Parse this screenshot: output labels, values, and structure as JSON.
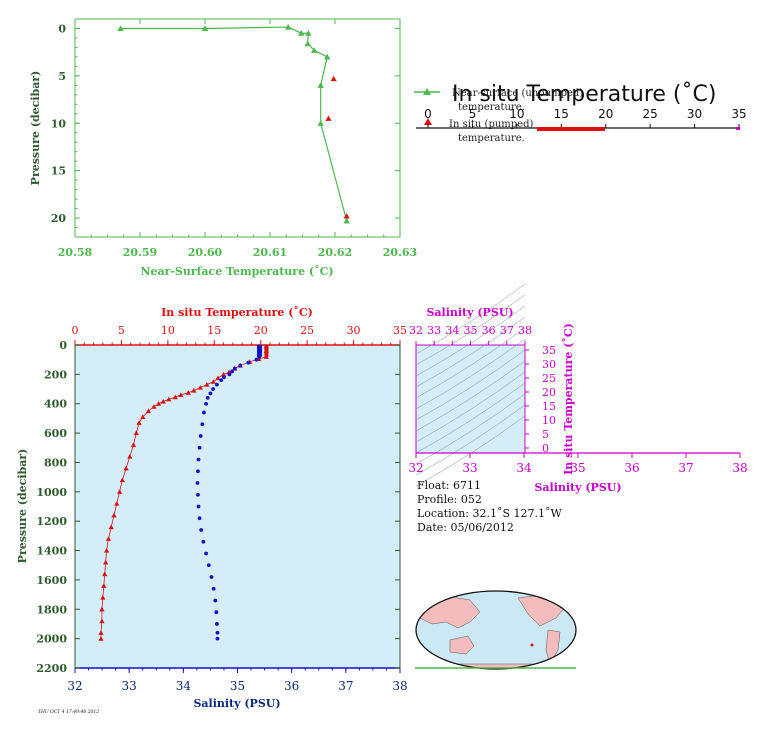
{
  "colors": {
    "green": "#4db84d",
    "red": "#dd1111",
    "blue": "#1111cc",
    "magenta": "#cc00cc",
    "navy": "#0a2a7a",
    "darkgreen": "#2e5a2e",
    "plot_bg": "#d3eef8",
    "land": "#f4bcbc",
    "ocean": "#cce8f4"
  },
  "top_chart": {
    "xlabel": "Near-Surface Temperature (˚C)",
    "ylabel": "Pressure (decibar)",
    "x_ticks": [
      "20.58",
      "20.59",
      "20.60",
      "20.61",
      "20.62",
      "20.63"
    ],
    "y_ticks": [
      "0",
      "5",
      "10",
      "15",
      "20"
    ],
    "legend": {
      "title": "In situ Temperature (˚C)",
      "item1": "Near-surface (unpumped)",
      "item1b": "temperature.",
      "item2": "In situ (pumped)",
      "item2b": "temperature.",
      "scale_ticks": [
        "0",
        "5",
        "10",
        "15",
        "20",
        "25",
        "30",
        "35"
      ]
    }
  },
  "main_chart": {
    "top_xlabel": "In situ Temperature (˚C)",
    "bottom_xlabel": "Salinity (PSU)",
    "ylabel": "Pressure (decibar)",
    "temp_ticks": [
      "0",
      "5",
      "10",
      "15",
      "20",
      "25",
      "30",
      "35"
    ],
    "sal_ticks": [
      "32",
      "33",
      "34",
      "35",
      "36",
      "37",
      "38"
    ],
    "pres_ticks": [
      "0",
      "200",
      "400",
      "600",
      "800",
      "1000",
      "1200",
      "1400",
      "1600",
      "1800",
      "2000",
      "2200"
    ]
  },
  "ts_chart": {
    "top_xlabel": "Salinity (PSU)",
    "right_ylabel": "In situ Temperature (˚C)",
    "bottom_xlabel": "Salinity (PSU)",
    "top_ticks": [
      "32",
      "33",
      "34",
      "35",
      "36",
      "37",
      "38"
    ],
    "right_ticks": [
      "0",
      "5",
      "10",
      "15",
      "20",
      "25",
      "30",
      "35"
    ],
    "bottom_ticks": [
      "32",
      "33",
      "34",
      "35",
      "36",
      "37",
      "38"
    ]
  },
  "info": {
    "float": "Float:  6711",
    "profile": "Profile:  052",
    "location": "Location:  32.1˚S  127.1˚W",
    "date": "Date:  05/06/2012"
  },
  "footer": "THU OCT 4 17:49:46 2012",
  "chart_data": [
    {
      "type": "line",
      "title": "",
      "xlabel": "Near-Surface Temperature (˚C)",
      "ylabel": "Pressure (decibar)",
      "xlim": [
        20.58,
        20.63
      ],
      "ylim": [
        22,
        -1
      ],
      "series": [
        {
          "name": "Near-surface (unpumped) temperature.",
          "points": [
            [
              20.587,
              0
            ],
            [
              20.6,
              0
            ],
            [
              20.6128,
              -0.15
            ],
            [
              20.6148,
              0.5
            ],
            [
              20.6159,
              0.5
            ],
            [
              20.6158,
              1.6
            ],
            [
              20.6168,
              2.3
            ],
            [
              20.6188,
              3.0
            ],
            [
              20.6178,
              6.0
            ],
            [
              20.6178,
              10.0
            ],
            [
              20.6218,
              20.3
            ]
          ]
        },
        {
          "name": "In situ (pumped) temperature.",
          "points": [
            [
              20.6198,
              5.3
            ],
            [
              20.619,
              9.5
            ],
            [
              20.6218,
              19.8
            ]
          ]
        }
      ]
    },
    {
      "type": "line",
      "title": "",
      "xlabel": "Salinity (PSU)",
      "x2label": "In situ Temperature (˚C)",
      "ylabel": "Pressure (decibar)",
      "xlim_salinity": [
        32,
        38
      ],
      "xlim_temperature": [
        0,
        35
      ],
      "ylim": [
        2200,
        0
      ],
      "series": [
        {
          "name": "In situ Temperature (˚C)",
          "points": [
            [
              20.6,
              10
            ],
            [
              20.6,
              40
            ],
            [
              20.6,
              80
            ],
            [
              19.8,
              95
            ],
            [
              18.8,
              115
            ],
            [
              17.8,
              140
            ],
            [
              17.2,
              160
            ],
            [
              16.6,
              185
            ],
            [
              16.0,
              200
            ],
            [
              15.4,
              225
            ],
            [
              14.9,
              250
            ],
            [
              14.2,
              270
            ],
            [
              13.5,
              290
            ],
            [
              12.8,
              310
            ],
            [
              12.2,
              325
            ],
            [
              11.4,
              340
            ],
            [
              10.8,
              355
            ],
            [
              10.1,
              370
            ],
            [
              9.5,
              385
            ],
            [
              9.0,
              400
            ],
            [
              8.5,
              420
            ],
            [
              7.9,
              450
            ],
            [
              7.3,
              490
            ],
            [
              6.9,
              530
            ],
            [
              6.6,
              600
            ],
            [
              6.3,
              680
            ],
            [
              5.9,
              760
            ],
            [
              5.5,
              840
            ],
            [
              5.1,
              920
            ],
            [
              4.8,
              1000
            ],
            [
              4.5,
              1080
            ],
            [
              4.2,
              1160
            ],
            [
              3.9,
              1240
            ],
            [
              3.6,
              1320
            ],
            [
              3.4,
              1400
            ],
            [
              3.3,
              1480
            ],
            [
              3.2,
              1560
            ],
            [
              3.1,
              1640
            ],
            [
              3.0,
              1720
            ],
            [
              2.9,
              1800
            ],
            [
              2.9,
              1880
            ],
            [
              2.8,
              1960
            ],
            [
              2.8,
              2000
            ]
          ]
        },
        {
          "name": "Salinity (PSU)",
          "points": [
            [
              35.4,
              10
            ],
            [
              35.4,
              40
            ],
            [
              35.4,
              80
            ],
            [
              35.35,
              100
            ],
            [
              35.2,
              120
            ],
            [
              35.05,
              140
            ],
            [
              34.95,
              160
            ],
            [
              34.9,
              180
            ],
            [
              34.85,
              200
            ],
            [
              34.75,
              220
            ],
            [
              34.7,
              240
            ],
            [
              34.62,
              270
            ],
            [
              34.55,
              300
            ],
            [
              34.5,
              330
            ],
            [
              34.45,
              360
            ],
            [
              34.42,
              400
            ],
            [
              34.38,
              460
            ],
            [
              34.35,
              540
            ],
            [
              34.32,
              620
            ],
            [
              34.3,
              700
            ],
            [
              34.28,
              780
            ],
            [
              34.27,
              860
            ],
            [
              34.26,
              940
            ],
            [
              34.27,
              1020
            ],
            [
              34.28,
              1100
            ],
            [
              34.3,
              1180
            ],
            [
              34.33,
              1260
            ],
            [
              34.37,
              1340
            ],
            [
              34.42,
              1420
            ],
            [
              34.47,
              1500
            ],
            [
              34.52,
              1580
            ],
            [
              34.56,
              1660
            ],
            [
              34.59,
              1740
            ],
            [
              34.61,
              1820
            ],
            [
              34.62,
              1900
            ],
            [
              34.63,
              1960
            ],
            [
              34.63,
              2000
            ]
          ]
        }
      ]
    }
  ]
}
